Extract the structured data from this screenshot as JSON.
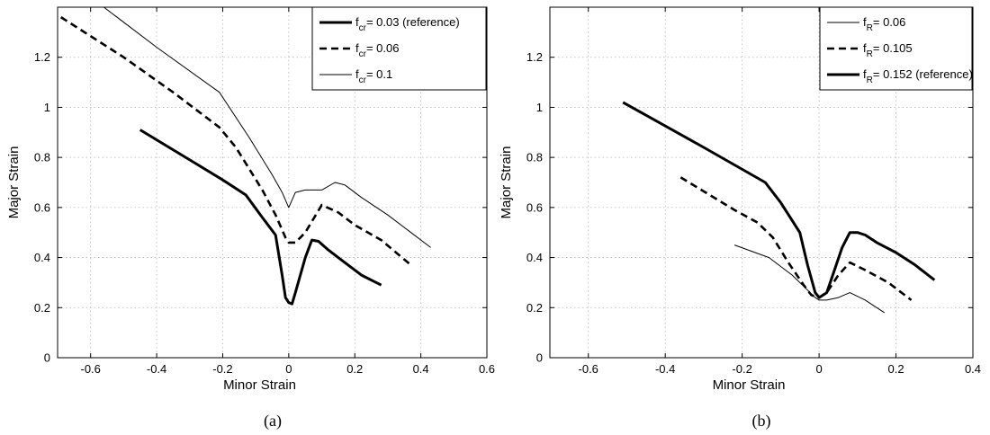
{
  "chart_data": [
    {
      "type": "line",
      "panel_label": "(a)",
      "xlabel": "Minor Strain",
      "ylabel": "Major Strain",
      "xlim": [
        -0.7,
        0.6
      ],
      "ylim": [
        0,
        1.4
      ],
      "xticks": [
        "-0.6",
        "-0.4",
        "-0.2",
        "0",
        "0.2",
        "0.4",
        "0.6"
      ],
      "yticks": [
        "0",
        "0.2",
        "0.4",
        "0.6",
        "0.8",
        "1",
        "1.2"
      ],
      "xtick_values": [
        -0.6,
        -0.4,
        -0.2,
        0,
        0.2,
        0.4,
        0.6
      ],
      "ytick_values": [
        0,
        0.2,
        0.4,
        0.6,
        0.8,
        1.0,
        1.2
      ],
      "grid": true,
      "legend_position": "top-right",
      "series": [
        {
          "name": "f_cr = 0.03 (reference)",
          "legend_main": "f",
          "legend_sub": "cr",
          "legend_rest": "= 0.03 (reference)",
          "style": "thick",
          "x": [
            -0.45,
            -0.3,
            -0.2,
            -0.13,
            -0.08,
            -0.04,
            -0.02,
            -0.01,
            0.0,
            0.01,
            0.02,
            0.05,
            0.07,
            0.09,
            0.12,
            0.16,
            0.22,
            0.28
          ],
          "y": [
            0.91,
            0.79,
            0.71,
            0.65,
            0.56,
            0.49,
            0.33,
            0.24,
            0.22,
            0.215,
            0.26,
            0.4,
            0.47,
            0.465,
            0.43,
            0.39,
            0.33,
            0.29
          ]
        },
        {
          "name": "f_cr = 0.06",
          "legend_main": "f",
          "legend_sub": "cr",
          "legend_rest": "= 0.06",
          "style": "dashed",
          "x": [
            -0.69,
            -0.5,
            -0.35,
            -0.21,
            -0.16,
            -0.08,
            -0.04,
            -0.01,
            0.0,
            0.02,
            0.05,
            0.1,
            0.15,
            0.2,
            0.28,
            0.37
          ],
          "y": [
            1.36,
            1.2,
            1.06,
            0.92,
            0.84,
            0.67,
            0.57,
            0.48,
            0.46,
            0.46,
            0.5,
            0.61,
            0.58,
            0.53,
            0.47,
            0.37
          ]
        },
        {
          "name": "f_cr = 0.1",
          "legend_main": "f",
          "legend_sub": "cr",
          "legend_rest": "= 0.1",
          "style": "thin",
          "x": [
            -0.56,
            -0.4,
            -0.21,
            -0.12,
            -0.05,
            -0.02,
            0.0,
            0.02,
            0.05,
            0.07,
            0.1,
            0.14,
            0.17,
            0.22,
            0.3,
            0.37,
            0.43
          ],
          "y": [
            1.4,
            1.24,
            1.06,
            0.88,
            0.73,
            0.66,
            0.6,
            0.66,
            0.67,
            0.67,
            0.67,
            0.7,
            0.69,
            0.64,
            0.57,
            0.5,
            0.44
          ]
        }
      ]
    },
    {
      "type": "line",
      "panel_label": "(b)",
      "xlabel": "Minor Strain",
      "ylabel": "Major Strain",
      "xlim": [
        -0.7,
        0.4
      ],
      "ylim": [
        0,
        1.4
      ],
      "xticks": [
        "-0.6",
        "-0.4",
        "-0.2",
        "0",
        "0.2",
        "0.4"
      ],
      "yticks": [
        "0",
        "0.2",
        "0.4",
        "0.6",
        "0.8",
        "1",
        "1.2"
      ],
      "xtick_values": [
        -0.6,
        -0.4,
        -0.2,
        0,
        0.2,
        0.4
      ],
      "ytick_values": [
        0,
        0.2,
        0.4,
        0.6,
        0.8,
        1.0,
        1.2
      ],
      "grid": true,
      "legend_position": "top-right",
      "series": [
        {
          "name": "f_R = 0.06",
          "legend_main": "f",
          "legend_sub": "R",
          "legend_rest": "= 0.06",
          "style": "thin",
          "x": [
            -0.22,
            -0.13,
            -0.07,
            -0.03,
            -0.01,
            0.0,
            0.02,
            0.05,
            0.08,
            0.12,
            0.17
          ],
          "y": [
            0.45,
            0.4,
            0.33,
            0.27,
            0.24,
            0.23,
            0.23,
            0.24,
            0.26,
            0.23,
            0.18
          ]
        },
        {
          "name": "f_R = 0.105",
          "legend_main": "f",
          "legend_sub": "R",
          "legend_rest": "= 0.105",
          "style": "dashed",
          "x": [
            -0.36,
            -0.22,
            -0.16,
            -0.12,
            -0.08,
            -0.04,
            -0.02,
            0.0,
            0.02,
            0.05,
            0.08,
            0.12,
            0.18,
            0.24
          ],
          "y": [
            0.72,
            0.59,
            0.54,
            0.48,
            0.38,
            0.29,
            0.25,
            0.24,
            0.26,
            0.33,
            0.38,
            0.35,
            0.3,
            0.23
          ]
        },
        {
          "name": "f_R = 0.152 (reference)",
          "legend_main": "f",
          "legend_sub": "R",
          "legend_rest": "= 0.152 (reference)",
          "style": "thick",
          "x": [
            -0.51,
            -0.3,
            -0.14,
            -0.1,
            -0.05,
            -0.03,
            -0.01,
            0.0,
            0.02,
            0.04,
            0.06,
            0.08,
            0.1,
            0.12,
            0.15,
            0.2,
            0.25,
            0.3
          ],
          "y": [
            1.02,
            0.84,
            0.7,
            0.62,
            0.5,
            0.37,
            0.26,
            0.24,
            0.26,
            0.35,
            0.44,
            0.5,
            0.5,
            0.49,
            0.46,
            0.42,
            0.37,
            0.31
          ]
        }
      ]
    }
  ]
}
